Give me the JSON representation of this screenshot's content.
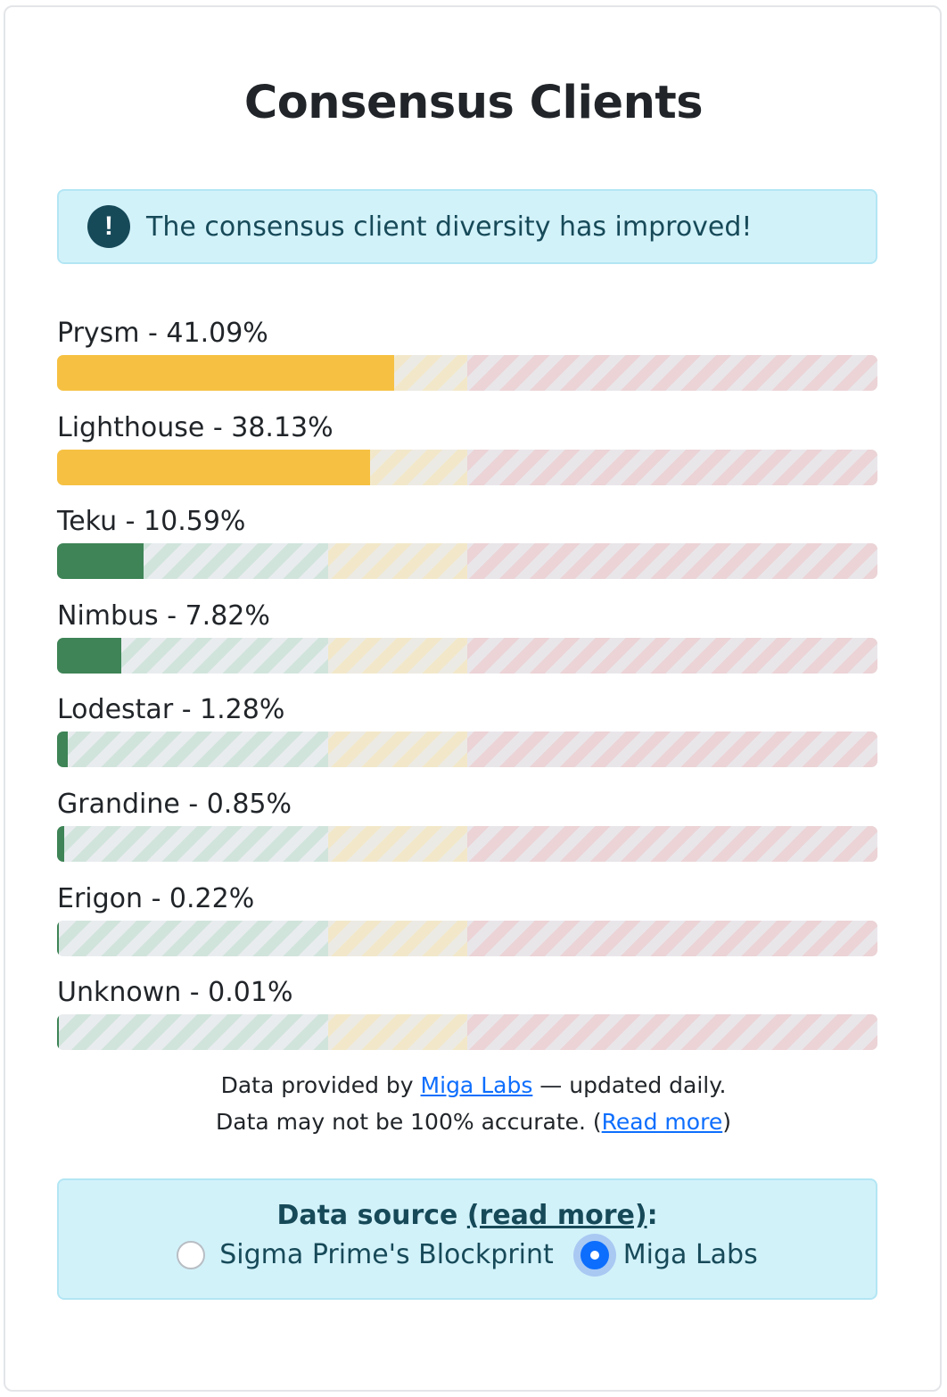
{
  "page": {
    "title": "Consensus Clients"
  },
  "alert": {
    "icon": "exclamation-icon",
    "text": "The consensus client diversity has improved!"
  },
  "colors": {
    "majority_fill": "#f6c142",
    "healthy_fill": "#3e8456",
    "alert_bg": "#d2f2fa",
    "alert_text": "#174a59",
    "link": "#0d6efd"
  },
  "clients": [
    {
      "label": "Prysm - 41.09%",
      "share_percent": 41.09,
      "status": "majority"
    },
    {
      "label": "Lighthouse - 38.13%",
      "share_percent": 38.13,
      "status": "majority"
    },
    {
      "label": "Teku - 10.59%",
      "share_percent": 10.59,
      "status": "healthy"
    },
    {
      "label": "Nimbus - 7.82%",
      "share_percent": 7.82,
      "status": "healthy"
    },
    {
      "label": "Lodestar - 1.28%",
      "share_percent": 1.28,
      "status": "healthy"
    },
    {
      "label": "Grandine - 0.85%",
      "share_percent": 0.85,
      "status": "healthy"
    },
    {
      "label": "Erigon - 0.22%",
      "share_percent": 0.22,
      "status": "healthy"
    },
    {
      "label": "Unknown - 0.01%",
      "share_percent": 0.01,
      "status": "healthy"
    }
  ],
  "footer": {
    "line1_prefix": "Data provided by ",
    "line1_link": "Miga Labs",
    "line1_suffix": " — updated daily.",
    "line2_prefix": "Data may not be 100% accurate. (",
    "line2_link": "Read more",
    "line2_suffix": ")"
  },
  "data_source": {
    "title_prefix": "Data source ",
    "title_link": "(read more)",
    "title_suffix": ":",
    "options": [
      {
        "label": "Sigma Prime's Blockprint",
        "checked": false
      },
      {
        "label": "Miga Labs",
        "checked": true
      }
    ]
  }
}
